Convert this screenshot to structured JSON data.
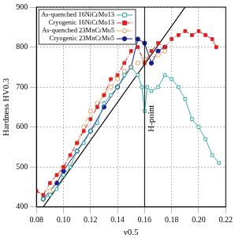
{
  "chart_data": {
    "type": "line",
    "x_label": "ν0.5",
    "y_label": "Hardness HV0.3",
    "xlim": [
      0.08,
      0.22
    ],
    "xticks": [
      0.08,
      {
        "value": 0.1,
        "label": "0.10"
      },
      0.12,
      0.14,
      0.16,
      0.18,
      {
        "value": 0.2,
        "label": "0.20"
      },
      0.22
    ],
    "ylim": [
      400,
      900
    ],
    "yticks": [
      400,
      500,
      600,
      700,
      800,
      900
    ],
    "grid": true,
    "legend": "upper left",
    "series": [
      {
        "name": "As-quenched 16NiCrMo13",
        "color": "#3aaaaa",
        "marker": "square-open",
        "line_style": "solid",
        "x": [
          0.085,
          0.09,
          0.095,
          0.1,
          0.105,
          0.11,
          0.115,
          0.12,
          0.125,
          0.13,
          0.135,
          0.14,
          0.145,
          0.15,
          0.155,
          0.158,
          0.16,
          0.162,
          0.165,
          0.17,
          0.175,
          0.18,
          0.185,
          0.19,
          0.195,
          0.2,
          0.205,
          0.21,
          0.215
        ],
        "values": [
          420,
          430,
          445,
          480,
          500,
          540,
          560,
          590,
          610,
          660,
          680,
          700,
          730,
          750,
          730,
          700,
          640,
          700,
          690,
          700,
          730,
          720,
          700,
          670,
          620,
          600,
          570,
          530,
          510
        ]
      },
      {
        "name": "Cryogenic 16NiCrMo13",
        "color": "#dd2222",
        "marker": "square",
        "line_style": "dashdot",
        "x": [
          0.08,
          0.085,
          0.09,
          0.095,
          0.1,
          0.105,
          0.11,
          0.115,
          0.12,
          0.125,
          0.13,
          0.135,
          0.14,
          0.145,
          0.15,
          0.155,
          0.16,
          0.165,
          0.17,
          0.175,
          0.18,
          0.185,
          0.19,
          0.195,
          0.2,
          0.205,
          0.21,
          0.213
        ],
        "values": [
          440,
          430,
          460,
          480,
          500,
          530,
          560,
          590,
          620,
          650,
          680,
          720,
          730,
          760,
          790,
          800,
          760,
          790,
          810,
          800,
          820,
          830,
          840,
          830,
          840,
          830,
          820,
          800
        ]
      },
      {
        "name": "As-quenched 23MnCrMo5",
        "color": "#e8a060",
        "marker": "circle-open",
        "line_style": "dashdot",
        "x": [
          0.09,
          0.1,
          0.11,
          0.115,
          0.12,
          0.125,
          0.13,
          0.135,
          0.14,
          0.145,
          0.15,
          0.155,
          0.16,
          0.17,
          0.175
        ],
        "values": [
          440,
          500,
          560,
          600,
          640,
          660,
          680,
          700,
          720,
          740,
          750,
          760,
          770,
          780,
          790
        ]
      },
      {
        "name": "Cryogenic 23MnCrMo5",
        "color": "#1a1a8c",
        "marker": "circle",
        "line_style": "solid",
        "x": [
          0.085,
          0.095,
          0.1,
          0.11,
          0.12,
          0.13,
          0.14,
          0.15,
          0.155,
          0.16,
          0.165,
          0.17,
          0.175
        ],
        "values": [
          420,
          460,
          490,
          540,
          590,
          650,
          700,
          750,
          820,
          810,
          760,
          790,
          800
        ]
      },
      {
        "color": "#000000",
        "marker": "none",
        "line_style": "solid",
        "x": [
          0.085,
          0.19
        ],
        "values": [
          400,
          900
        ]
      }
    ],
    "annotations": [
      {
        "text": "H-point",
        "x": 0.16
      }
    ]
  }
}
